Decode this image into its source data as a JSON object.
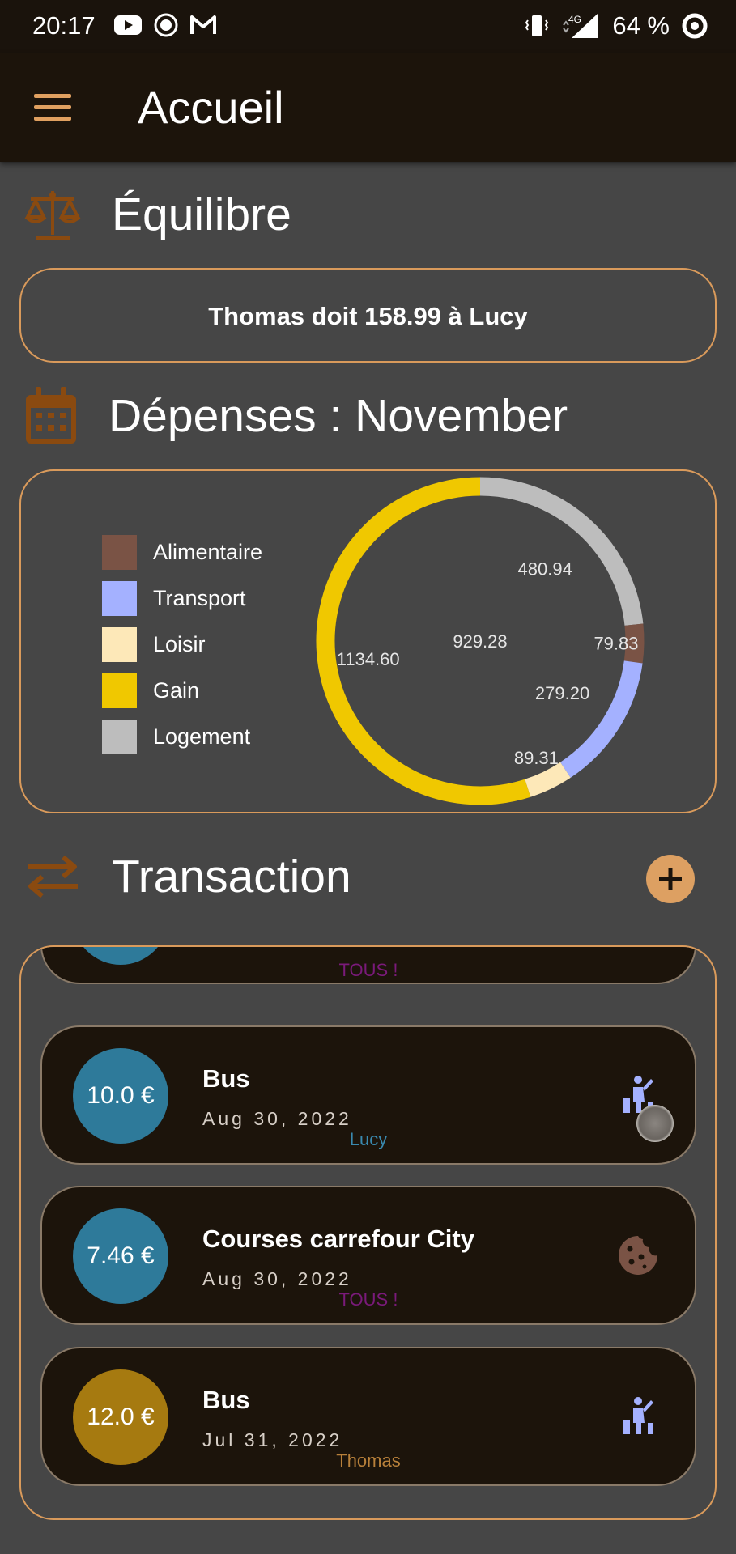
{
  "status_bar": {
    "time": "20:17",
    "battery": "64 %",
    "network": "4G"
  },
  "app_bar": {
    "title": "Accueil",
    "menu_icon": "hamburger-menu-icon"
  },
  "balance": {
    "heading": "Équilibre",
    "icon": "scale-icon",
    "text": "Thomas doit 158.99 à Lucy"
  },
  "expenses": {
    "heading": "Dépenses : November",
    "icon": "calendar-icon",
    "legend": [
      {
        "label": "Alimentaire",
        "color": "#7a5345"
      },
      {
        "label": "Transport",
        "color": "#a4b1ff"
      },
      {
        "label": "Loisir",
        "color": "#fde8b8"
      },
      {
        "label": "Gain",
        "color": "#f0c800"
      },
      {
        "label": "Logement",
        "color": "#bdbdbd"
      }
    ],
    "center_value": "929.28"
  },
  "chart_data": {
    "type": "pie",
    "categories": [
      "Logement",
      "Alimentaire",
      "Transport",
      "Loisir",
      "Gain"
    ],
    "values": [
      480.94,
      79.83,
      279.2,
      89.31,
      1134.6
    ],
    "labels": [
      "480.94",
      "79.83",
      "279.20",
      "89.31",
      "1134.60"
    ],
    "colors": [
      "#bdbdbd",
      "#7a5345",
      "#a4b1ff",
      "#fde8b8",
      "#f0c800"
    ],
    "title": "Dépenses : November",
    "center_label": "929.28",
    "legend_position": "left"
  },
  "transactions": {
    "heading": "Transaction",
    "icon": "swap-arrows-icon",
    "add_icon": "plus-icon",
    "items": [
      {
        "amount": "",
        "title": "",
        "date": "",
        "who": "TOUS !",
        "who_color": "#7a1a7a",
        "amount_color": "#2e7a9a",
        "icon": "person-icon"
      },
      {
        "amount": "10.0 €",
        "title": "Bus",
        "date": "Aug 30, 2022",
        "who": "Lucy",
        "who_color": "#3a8ab0",
        "amount_color": "#2e7a9a",
        "icon": "transport-person-icon"
      },
      {
        "amount": "7.46 €",
        "title": "Courses carrefour City",
        "date": "Aug 30, 2022",
        "who": "TOUS !",
        "who_color": "#7a1a7a",
        "amount_color": "#2e7a9a",
        "icon": "cookie-icon"
      },
      {
        "amount": "12.0 €",
        "title": "Bus",
        "date": "Jul 31, 2022",
        "who": "Thomas",
        "who_color": "#b8803a",
        "amount_color": "#a67a10",
        "icon": "transport-person-icon"
      }
    ]
  }
}
